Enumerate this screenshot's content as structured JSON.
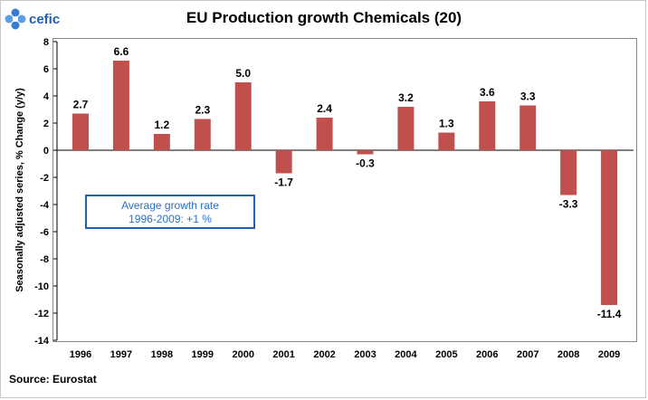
{
  "logo": {
    "text": "cefic"
  },
  "chart_data": {
    "type": "bar",
    "title": "EU Production growth Chemicals (20)",
    "ylabel": "Seasonally adjusted series, % Change (y/y)",
    "xlabel": "",
    "categories": [
      "1996",
      "1997",
      "1998",
      "1999",
      "2000",
      "2001",
      "2002",
      "2003",
      "2004",
      "2005",
      "2006",
      "2007",
      "2008",
      "2009"
    ],
    "values": [
      2.7,
      6.6,
      1.2,
      2.3,
      5.0,
      -1.7,
      2.4,
      -0.3,
      3.2,
      1.3,
      3.6,
      3.3,
      -3.3,
      -11.4
    ],
    "value_labels": [
      "2.7",
      "6.6",
      "1.2",
      "2.3",
      "5.0",
      "-1.7",
      "2.4",
      "-0.3",
      "3.2",
      "1.3",
      "3.6",
      "3.3",
      "-3.3",
      "-11.4"
    ],
    "ylim": [
      -14,
      8
    ],
    "yticks": [
      8,
      6,
      4,
      2,
      0,
      -2,
      -4,
      -6,
      -8,
      -10,
      -12,
      -14
    ],
    "bar_color": "#c0504d",
    "annotation": {
      "line1": "Average growth rate",
      "line2": "1996-2009: +1 %"
    },
    "source": "Source: Eurostat"
  }
}
